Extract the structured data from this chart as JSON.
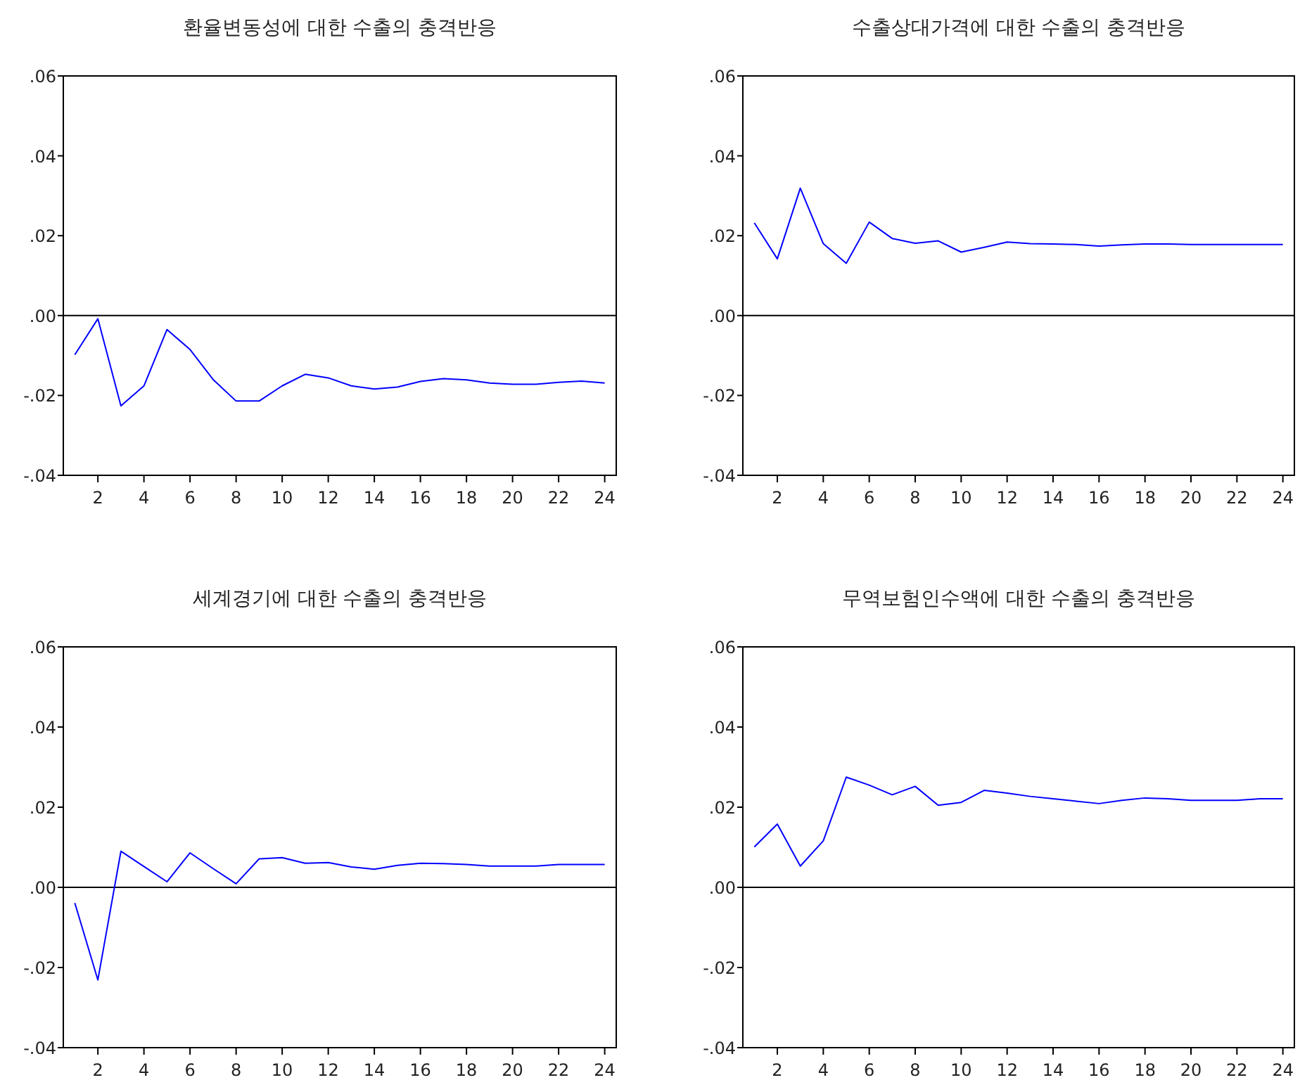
{
  "chart_data": [
    {
      "type": "line",
      "title": "환율변동성에 대한 수출의 충격반응",
      "x": [
        1,
        2,
        3,
        4,
        5,
        6,
        7,
        8,
        9,
        10,
        11,
        12,
        13,
        14,
        15,
        16,
        17,
        18,
        19,
        20,
        21,
        22,
        23,
        24
      ],
      "xlim": [
        0.5,
        24.5
      ],
      "xticks": [
        2,
        4,
        6,
        8,
        10,
        12,
        14,
        16,
        18,
        20,
        22,
        24
      ],
      "ylim": [
        -0.04,
        0.06
      ],
      "yticks": [
        {
          "value": -0.04,
          "label": "-.04"
        },
        {
          "value": -0.02,
          "label": "-.02"
        },
        {
          "value": 0,
          "label": ".00"
        },
        {
          "value": 0.02,
          "label": ".02"
        },
        {
          "value": 0.04,
          "label": ".04"
        },
        {
          "value": 0.06,
          "label": ".06"
        }
      ],
      "ref_lines": [
        {
          "axis": "y",
          "value": 0,
          "color": "#000000"
        }
      ],
      "grid": false,
      "series": [
        {
          "color": "#0000ff",
          "values": [
            -0.0098,
            -0.0008,
            -0.0226,
            -0.0176,
            -0.0035,
            -0.0085,
            -0.016,
            -0.0214,
            -0.0214,
            -0.0176,
            -0.0147,
            -0.0156,
            -0.0176,
            -0.0184,
            -0.0179,
            -0.0165,
            -0.0158,
            -0.0161,
            -0.0169,
            -0.0172,
            -0.0172,
            -0.0167,
            -0.0164,
            -0.0169
          ]
        }
      ]
    },
    {
      "type": "line",
      "title": "수출상대가격에 대한 수출의 충격반응",
      "x": [
        1,
        2,
        3,
        4,
        5,
        6,
        7,
        8,
        9,
        10,
        11,
        12,
        13,
        14,
        15,
        16,
        17,
        18,
        19,
        20,
        21,
        22,
        23,
        24
      ],
      "xlim": [
        0.5,
        24.5
      ],
      "xticks": [
        2,
        4,
        6,
        8,
        10,
        12,
        14,
        16,
        18,
        20,
        22,
        24
      ],
      "ylim": [
        -0.04,
        0.06
      ],
      "yticks": [
        {
          "value": -0.04,
          "label": "-.04"
        },
        {
          "value": -0.02,
          "label": "-.02"
        },
        {
          "value": 0,
          "label": ".00"
        },
        {
          "value": 0.02,
          "label": ".02"
        },
        {
          "value": 0.04,
          "label": ".04"
        },
        {
          "value": 0.06,
          "label": ".06"
        }
      ],
      "ref_lines": [
        {
          "axis": "y",
          "value": 0,
          "color": "#000000"
        }
      ],
      "grid": false,
      "series": [
        {
          "color": "#0000ff",
          "values": [
            0.0232,
            0.0142,
            0.0319,
            0.018,
            0.0131,
            0.0234,
            0.0193,
            0.0181,
            0.0187,
            0.0159,
            0.0171,
            0.0184,
            0.018,
            0.0179,
            0.0178,
            0.0174,
            0.0177,
            0.0179,
            0.0179,
            0.0178,
            0.0178,
            0.0178,
            0.0178,
            0.0178
          ]
        }
      ]
    },
    {
      "type": "line",
      "title": "세계경기에 대한 수출의 충격반응",
      "x": [
        1,
        2,
        3,
        4,
        5,
        6,
        7,
        8,
        9,
        10,
        11,
        12,
        13,
        14,
        15,
        16,
        17,
        18,
        19,
        20,
        21,
        22,
        23,
        24
      ],
      "xlim": [
        0.5,
        24.5
      ],
      "xticks": [
        2,
        4,
        6,
        8,
        10,
        12,
        14,
        16,
        18,
        20,
        22,
        24
      ],
      "ylim": [
        -0.04,
        0.06
      ],
      "yticks": [
        {
          "value": -0.04,
          "label": "-.04"
        },
        {
          "value": -0.02,
          "label": "-.02"
        },
        {
          "value": 0,
          "label": ".00"
        },
        {
          "value": 0.02,
          "label": ".02"
        },
        {
          "value": 0.04,
          "label": ".04"
        },
        {
          "value": 0.06,
          "label": ".06"
        }
      ],
      "ref_lines": [
        {
          "axis": "y",
          "value": 0,
          "color": "#000000"
        }
      ],
      "grid": false,
      "series": [
        {
          "color": "#0000ff",
          "values": [
            -0.0039,
            -0.0231,
            0.009,
            0.0052,
            0.0014,
            0.0086,
            0.0047,
            0.0009,
            0.0071,
            0.0074,
            0.006,
            0.0062,
            0.0051,
            0.0045,
            0.0055,
            0.006,
            0.0059,
            0.0057,
            0.0053,
            0.0053,
            0.0053,
            0.0057,
            0.0057,
            0.0057
          ]
        }
      ]
    },
    {
      "type": "line",
      "title": "무역보험인수액에 대한 수출의 충격반응",
      "x": [
        1,
        2,
        3,
        4,
        5,
        6,
        7,
        8,
        9,
        10,
        11,
        12,
        13,
        14,
        15,
        16,
        17,
        18,
        19,
        20,
        21,
        22,
        23,
        24
      ],
      "xlim": [
        0.5,
        24.5
      ],
      "xticks": [
        2,
        4,
        6,
        8,
        10,
        12,
        14,
        16,
        18,
        20,
        22,
        24
      ],
      "ylim": [
        -0.04,
        0.06
      ],
      "yticks": [
        {
          "value": -0.04,
          "label": "-.04"
        },
        {
          "value": -0.02,
          "label": "-.02"
        },
        {
          "value": 0,
          "label": ".00"
        },
        {
          "value": 0.02,
          "label": ".02"
        },
        {
          "value": 0.04,
          "label": ".04"
        },
        {
          "value": 0.06,
          "label": ".06"
        }
      ],
      "ref_lines": [
        {
          "axis": "y",
          "value": 0,
          "color": "#000000"
        }
      ],
      "grid": false,
      "series": [
        {
          "color": "#0000ff",
          "values": [
            0.0101,
            0.0158,
            0.0053,
            0.0116,
            0.0275,
            0.0255,
            0.0231,
            0.0252,
            0.0205,
            0.0212,
            0.0242,
            0.0235,
            0.0227,
            0.0221,
            0.0215,
            0.0209,
            0.0217,
            0.0223,
            0.0221,
            0.0217,
            0.0217,
            0.0217,
            0.0221,
            0.0221
          ]
        }
      ]
    }
  ]
}
